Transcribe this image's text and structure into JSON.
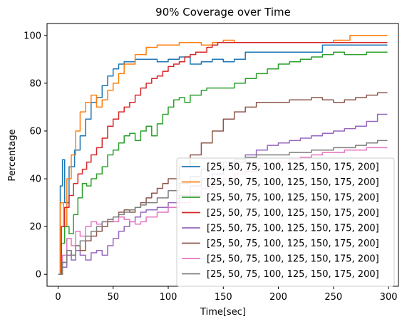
{
  "chart_data": {
    "type": "line",
    "title": "90% Coverage over Time",
    "xlabel": "Time[sec]",
    "ylabel": "Percentage",
    "xlim": [
      -10,
      309
    ],
    "ylim": [
      -5,
      105
    ],
    "xticks": [
      0,
      50,
      100,
      150,
      200,
      250,
      300
    ],
    "yticks": [
      0,
      20,
      40,
      60,
      80,
      100
    ],
    "grid": false,
    "legend_position": "lower-right",
    "series": [
      {
        "name": "[25, 50, 75, 100, 125, 150, 175, 200]",
        "color": "#1f77b4",
        "points": [
          [
            0,
            0
          ],
          [
            2,
            37
          ],
          [
            4,
            48
          ],
          [
            6,
            30
          ],
          [
            10,
            45
          ],
          [
            15,
            52
          ],
          [
            20,
            58
          ],
          [
            25,
            65
          ],
          [
            30,
            72
          ],
          [
            35,
            74
          ],
          [
            40,
            79
          ],
          [
            45,
            83
          ],
          [
            50,
            86
          ],
          [
            55,
            88
          ],
          [
            60,
            89
          ],
          [
            70,
            90
          ],
          [
            80,
            90
          ],
          [
            90,
            89
          ],
          [
            100,
            90
          ],
          [
            110,
            91
          ],
          [
            120,
            88
          ],
          [
            130,
            89
          ],
          [
            140,
            90
          ],
          [
            150,
            89
          ],
          [
            160,
            90
          ],
          [
            170,
            93
          ],
          [
            180,
            93
          ],
          [
            200,
            93
          ],
          [
            220,
            93
          ],
          [
            240,
            96
          ],
          [
            260,
            96
          ],
          [
            280,
            96
          ],
          [
            299,
            96
          ]
        ]
      },
      {
        "name": "[25, 50, 75, 100, 125, 150, 175, 200]",
        "color": "#ff7f0e",
        "points": [
          [
            0,
            0
          ],
          [
            2,
            30
          ],
          [
            5,
            20
          ],
          [
            8,
            40
          ],
          [
            12,
            50
          ],
          [
            16,
            60
          ],
          [
            20,
            68
          ],
          [
            25,
            72
          ],
          [
            30,
            75
          ],
          [
            35,
            70
          ],
          [
            40,
            73
          ],
          [
            45,
            77
          ],
          [
            50,
            80
          ],
          [
            55,
            84
          ],
          [
            60,
            88
          ],
          [
            70,
            92
          ],
          [
            80,
            95
          ],
          [
            90,
            96
          ],
          [
            100,
            96
          ],
          [
            110,
            97
          ],
          [
            120,
            97
          ],
          [
            130,
            96
          ],
          [
            140,
            97
          ],
          [
            150,
            98
          ],
          [
            160,
            97
          ],
          [
            170,
            97
          ],
          [
            180,
            97
          ],
          [
            200,
            97
          ],
          [
            230,
            97
          ],
          [
            250,
            98
          ],
          [
            265,
            100
          ],
          [
            299,
            100
          ]
        ]
      },
      {
        "name": "[25, 50, 75, 100, 125, 150, 175, 200]",
        "color": "#2ca02c",
        "points": [
          [
            0,
            0
          ],
          [
            3,
            13
          ],
          [
            6,
            20
          ],
          [
            10,
            17
          ],
          [
            14,
            25
          ],
          [
            18,
            32
          ],
          [
            22,
            38
          ],
          [
            26,
            37
          ],
          [
            30,
            40
          ],
          [
            35,
            42
          ],
          [
            40,
            45
          ],
          [
            45,
            50
          ],
          [
            50,
            52
          ],
          [
            55,
            55
          ],
          [
            60,
            58
          ],
          [
            65,
            59
          ],
          [
            70,
            56
          ],
          [
            75,
            60
          ],
          [
            80,
            62
          ],
          [
            85,
            58
          ],
          [
            90,
            63
          ],
          [
            95,
            67
          ],
          [
            100,
            70
          ],
          [
            105,
            73
          ],
          [
            110,
            74
          ],
          [
            115,
            72
          ],
          [
            120,
            75
          ],
          [
            125,
            75
          ],
          [
            130,
            77
          ],
          [
            135,
            78
          ],
          [
            140,
            78
          ],
          [
            150,
            78
          ],
          [
            160,
            80
          ],
          [
            170,
            82
          ],
          [
            180,
            84
          ],
          [
            190,
            86
          ],
          [
            200,
            88
          ],
          [
            210,
            89
          ],
          [
            220,
            90
          ],
          [
            230,
            91
          ],
          [
            240,
            92
          ],
          [
            250,
            93
          ],
          [
            260,
            92
          ],
          [
            280,
            93
          ],
          [
            299,
            93
          ]
        ]
      },
      {
        "name": "[25, 50, 75, 100, 125, 150, 175, 200]",
        "color": "#d62728",
        "points": [
          [
            0,
            0
          ],
          [
            3,
            20
          ],
          [
            6,
            28
          ],
          [
            10,
            33
          ],
          [
            14,
            38
          ],
          [
            18,
            42
          ],
          [
            22,
            44
          ],
          [
            26,
            47
          ],
          [
            30,
            50
          ],
          [
            35,
            53
          ],
          [
            40,
            57
          ],
          [
            45,
            62
          ],
          [
            50,
            65
          ],
          [
            55,
            68
          ],
          [
            60,
            70
          ],
          [
            65,
            72
          ],
          [
            70,
            75
          ],
          [
            75,
            78
          ],
          [
            80,
            80
          ],
          [
            85,
            82
          ],
          [
            90,
            83
          ],
          [
            95,
            85
          ],
          [
            100,
            87
          ],
          [
            105,
            88
          ],
          [
            110,
            89
          ],
          [
            115,
            91
          ],
          [
            120,
            92
          ],
          [
            125,
            93
          ],
          [
            130,
            93
          ],
          [
            135,
            95
          ],
          [
            140,
            96
          ],
          [
            145,
            97
          ],
          [
            150,
            97
          ],
          [
            160,
            97
          ],
          [
            170,
            97
          ],
          [
            180,
            97
          ],
          [
            190,
            97
          ],
          [
            200,
            97
          ],
          [
            220,
            97
          ],
          [
            240,
            97
          ],
          [
            260,
            97
          ],
          [
            280,
            97
          ],
          [
            299,
            97
          ]
        ]
      },
      {
        "name": "[25, 50, 75, 100, 125, 150, 175, 200]",
        "color": "#9467bd",
        "points": [
          [
            0,
            0
          ],
          [
            4,
            3
          ],
          [
            8,
            8
          ],
          [
            12,
            6
          ],
          [
            16,
            10
          ],
          [
            20,
            8
          ],
          [
            25,
            6
          ],
          [
            30,
            9
          ],
          [
            35,
            10
          ],
          [
            40,
            8
          ],
          [
            45,
            12
          ],
          [
            50,
            15
          ],
          [
            55,
            18
          ],
          [
            60,
            20
          ],
          [
            65,
            22
          ],
          [
            70,
            24
          ],
          [
            75,
            26
          ],
          [
            80,
            27
          ],
          [
            90,
            28
          ],
          [
            100,
            30
          ],
          [
            110,
            33
          ],
          [
            120,
            37
          ],
          [
            130,
            40
          ],
          [
            140,
            42
          ],
          [
            150,
            45
          ],
          [
            160,
            47
          ],
          [
            170,
            50
          ],
          [
            180,
            52
          ],
          [
            190,
            54
          ],
          [
            200,
            55
          ],
          [
            210,
            56
          ],
          [
            220,
            57
          ],
          [
            230,
            58
          ],
          [
            240,
            59
          ],
          [
            250,
            60
          ],
          [
            260,
            61
          ],
          [
            270,
            62
          ],
          [
            280,
            64
          ],
          [
            290,
            67
          ],
          [
            299,
            67
          ]
        ]
      },
      {
        "name": "[25, 50, 75, 100, 125, 150, 175, 200]",
        "color": "#8c564b",
        "points": [
          [
            0,
            0
          ],
          [
            4,
            5
          ],
          [
            8,
            10
          ],
          [
            12,
            8
          ],
          [
            16,
            12
          ],
          [
            20,
            10
          ],
          [
            25,
            14
          ],
          [
            30,
            16
          ],
          [
            35,
            18
          ],
          [
            40,
            20
          ],
          [
            45,
            22
          ],
          [
            50,
            24
          ],
          [
            55,
            26
          ],
          [
            60,
            27
          ],
          [
            65,
            26
          ],
          [
            70,
            28
          ],
          [
            75,
            30
          ],
          [
            80,
            32
          ],
          [
            85,
            34
          ],
          [
            90,
            36
          ],
          [
            95,
            38
          ],
          [
            100,
            40
          ],
          [
            110,
            45
          ],
          [
            120,
            50
          ],
          [
            130,
            55
          ],
          [
            140,
            60
          ],
          [
            150,
            65
          ],
          [
            160,
            68
          ],
          [
            170,
            70
          ],
          [
            180,
            72
          ],
          [
            190,
            72
          ],
          [
            200,
            72
          ],
          [
            210,
            73
          ],
          [
            220,
            73
          ],
          [
            230,
            74
          ],
          [
            240,
            73
          ],
          [
            250,
            72
          ],
          [
            260,
            73
          ],
          [
            270,
            74
          ],
          [
            280,
            75
          ],
          [
            290,
            76
          ],
          [
            299,
            76
          ]
        ]
      },
      {
        "name": "[25, 50, 75, 100, 125, 150, 175, 200]",
        "color": "#e377c2",
        "points": [
          [
            0,
            0
          ],
          [
            4,
            8
          ],
          [
            8,
            15
          ],
          [
            12,
            12
          ],
          [
            16,
            18
          ],
          [
            20,
            16
          ],
          [
            25,
            20
          ],
          [
            30,
            22
          ],
          [
            35,
            21
          ],
          [
            40,
            22
          ],
          [
            45,
            23
          ],
          [
            50,
            22
          ],
          [
            55,
            24
          ],
          [
            60,
            23
          ],
          [
            65,
            22
          ],
          [
            70,
            21
          ],
          [
            75,
            22
          ],
          [
            80,
            24
          ],
          [
            90,
            26
          ],
          [
            100,
            28
          ],
          [
            110,
            30
          ],
          [
            120,
            33
          ],
          [
            130,
            36
          ],
          [
            140,
            38
          ],
          [
            150,
            40
          ],
          [
            160,
            42
          ],
          [
            170,
            43
          ],
          [
            180,
            45
          ],
          [
            190,
            46
          ],
          [
            200,
            47
          ],
          [
            210,
            48
          ],
          [
            220,
            49
          ],
          [
            230,
            50
          ],
          [
            240,
            51
          ],
          [
            250,
            51
          ],
          [
            260,
            52
          ],
          [
            270,
            52
          ],
          [
            280,
            53
          ],
          [
            290,
            53
          ],
          [
            299,
            53
          ]
        ]
      },
      {
        "name": "[25, 50, 75, 100, 125, 150, 175, 200]",
        "color": "#7f7f7f",
        "points": [
          [
            0,
            0
          ],
          [
            4,
            5
          ],
          [
            8,
            10
          ],
          [
            12,
            8
          ],
          [
            16,
            12
          ],
          [
            20,
            14
          ],
          [
            25,
            16
          ],
          [
            30,
            18
          ],
          [
            35,
            20
          ],
          [
            40,
            22
          ],
          [
            45,
            23
          ],
          [
            50,
            24
          ],
          [
            55,
            25
          ],
          [
            60,
            26
          ],
          [
            65,
            27
          ],
          [
            70,
            28
          ],
          [
            75,
            29
          ],
          [
            80,
            30
          ],
          [
            90,
            32
          ],
          [
            100,
            35
          ],
          [
            110,
            38
          ],
          [
            120,
            41
          ],
          [
            130,
            44
          ],
          [
            140,
            46
          ],
          [
            150,
            47
          ],
          [
            160,
            48
          ],
          [
            170,
            49
          ],
          [
            180,
            50
          ],
          [
            190,
            50
          ],
          [
            200,
            50
          ],
          [
            210,
            51
          ],
          [
            220,
            51
          ],
          [
            230,
            52
          ],
          [
            240,
            52
          ],
          [
            250,
            53
          ],
          [
            260,
            53
          ],
          [
            270,
            54
          ],
          [
            280,
            55
          ],
          [
            290,
            56
          ],
          [
            299,
            56
          ]
        ]
      }
    ]
  }
}
